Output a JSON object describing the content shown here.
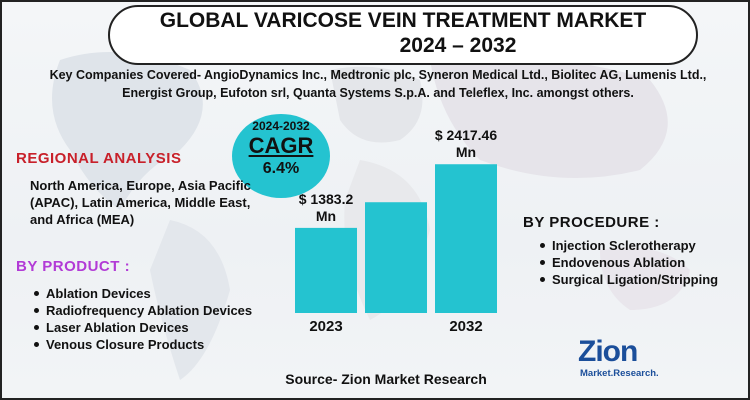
{
  "title": {
    "line1": "GLOBAL VARICOSE VEIN TREATMENT MARKET",
    "line2": "2024 – 2032"
  },
  "companies": "Key Companies Covered- AngioDynamics Inc., Medtronic plc, Syneron Medical Ltd., Biolitec AG, Lumenis Ltd., Energist Group, Eufoton srl, Quanta Systems S.p.A. and Teleflex, Inc. amongst others.",
  "cagr": {
    "years": "2024-2032",
    "label": "CAGR",
    "value": "6.4%"
  },
  "regional": {
    "heading": "REGIONAL ANALYSIS",
    "text": "North America, Europe, Asia Pacific (APAC), Latin America, Middle East, and Africa (MEA)"
  },
  "product": {
    "heading": "BY  PRODUCT :",
    "items": [
      "Ablation Devices",
      "Radiofrequency Ablation Devices",
      "Laser Ablation Devices",
      "Venous Closure Products"
    ]
  },
  "procedure": {
    "heading": "BY  PROCEDURE :",
    "items": [
      "Injection Sclerotherapy",
      "Endovenous Ablation",
      "Surgical Ligation/Stripping"
    ]
  },
  "source": "Source- Zion Market Research",
  "logo": {
    "name": "Zion",
    "tagline": "Market.Research."
  },
  "colors": {
    "bar": "#24c3d0",
    "region_heading": "#c8202a",
    "product_heading": "#b23bd6",
    "logo": "#1b4e9a"
  },
  "chart_data": {
    "type": "bar",
    "categories": [
      "2023",
      "",
      "2032"
    ],
    "values": [
      1383.2,
      1800,
      2417.46
    ],
    "data_labels": [
      "$ 1383.2 Mn",
      "",
      "$ 2417.46 Mn"
    ],
    "unit": "Mn",
    "ylim": [
      0,
      2600
    ],
    "grid": false
  }
}
